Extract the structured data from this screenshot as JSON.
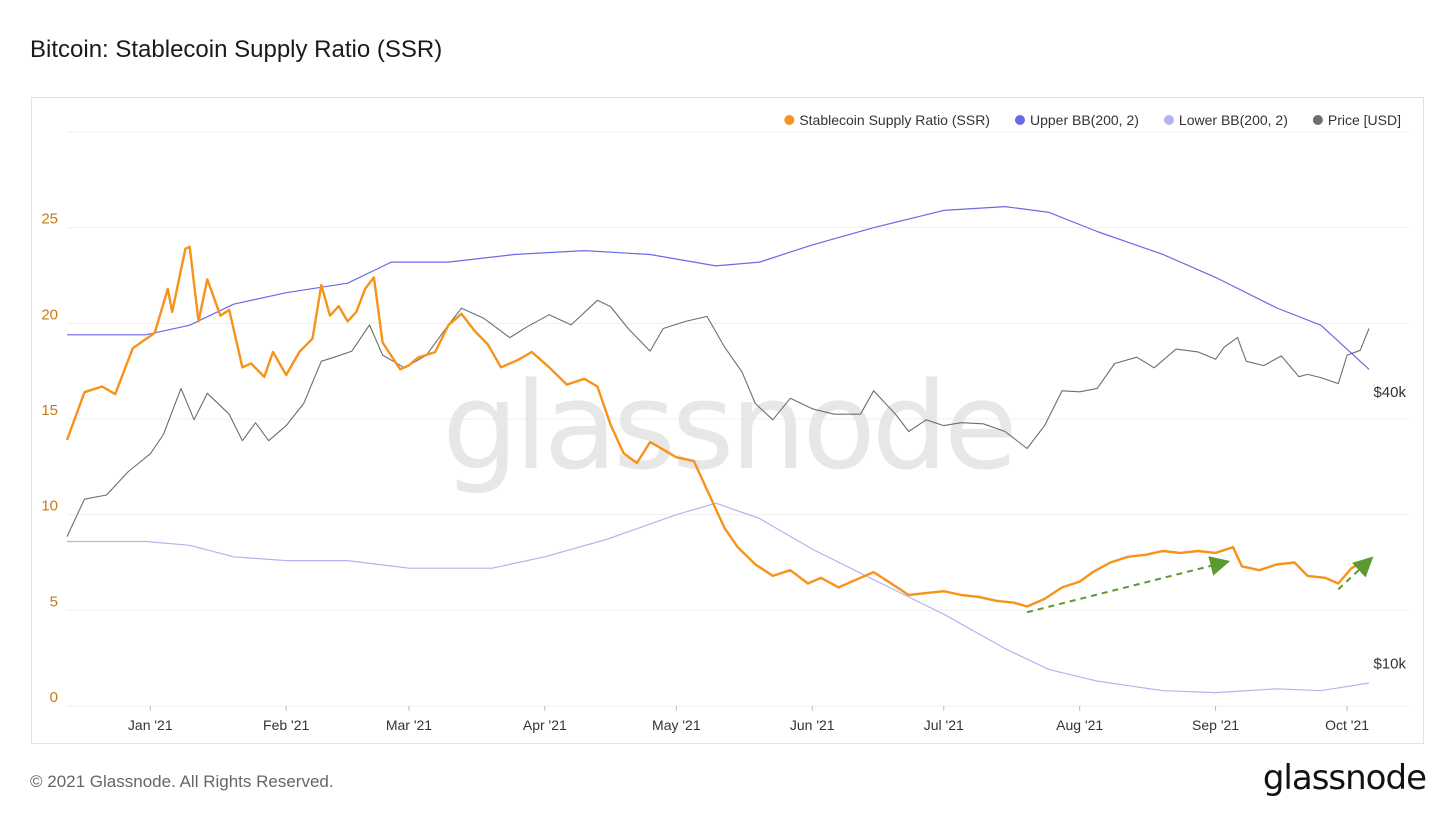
{
  "title": "Bitcoin: Stablecoin Supply Ratio (SSR)",
  "footer": {
    "copyright": "© 2021 Glassnode. All Rights Reserved.",
    "logo_text": "glassnode"
  },
  "watermark": "glassnode",
  "colors": {
    "ssr": "#f7931a",
    "upper_bb": "#6a6ae6",
    "lower_bb": "#b4b4f0",
    "price": "#6e6e6e",
    "annotation": "#5a9a2e",
    "grid": "#efefef",
    "left_axis": "#c77a12"
  },
  "chart_data": {
    "type": "line",
    "x_range": [
      "2020-12-13",
      "2021-10-06"
    ],
    "x_ticks": [
      {
        "date": "2021-01-01",
        "label": "Jan '21"
      },
      {
        "date": "2021-02-01",
        "label": "Feb '21"
      },
      {
        "date": "2021-03-01",
        "label": "Mar '21"
      },
      {
        "date": "2021-04-01",
        "label": "Apr '21"
      },
      {
        "date": "2021-05-01",
        "label": "May '21"
      },
      {
        "date": "2021-06-01",
        "label": "Jun '21"
      },
      {
        "date": "2021-07-01",
        "label": "Jul '21"
      },
      {
        "date": "2021-08-01",
        "label": "Aug '21"
      },
      {
        "date": "2021-09-01",
        "label": "Sep '21"
      },
      {
        "date": "2021-10-01",
        "label": "Oct '21"
      }
    ],
    "y_left": {
      "range": [
        0,
        30
      ],
      "ticks": [
        0,
        5,
        10,
        15,
        20,
        25
      ]
    },
    "y_right": {
      "scale": "log",
      "range": [
        8000,
        150000
      ],
      "ticks": [
        {
          "value": 10000,
          "label": "$10k"
        },
        {
          "value": 40000,
          "label": "$40k"
        }
      ]
    },
    "legend_placement": "top-right",
    "grid": true,
    "series": [
      {
        "name": "Stablecoin Supply Ratio (SSR)",
        "axis": "left",
        "points": [
          [
            "2020-12-13",
            13.9
          ],
          [
            "2020-12-17",
            16.4
          ],
          [
            "2020-12-21",
            16.7
          ],
          [
            "2020-12-24",
            16.3
          ],
          [
            "2020-12-28",
            18.7
          ],
          [
            "2021-01-02",
            19.5
          ],
          [
            "2021-01-05",
            21.8
          ],
          [
            "2021-01-06",
            20.6
          ],
          [
            "2021-01-09",
            23.9
          ],
          [
            "2021-01-10",
            24.0
          ],
          [
            "2021-01-12",
            20.1
          ],
          [
            "2021-01-14",
            22.3
          ],
          [
            "2021-01-17",
            20.4
          ],
          [
            "2021-01-19",
            20.7
          ],
          [
            "2021-01-22",
            17.7
          ],
          [
            "2021-01-24",
            17.9
          ],
          [
            "2021-01-27",
            17.2
          ],
          [
            "2021-01-29",
            18.5
          ],
          [
            "2021-02-01",
            17.3
          ],
          [
            "2021-02-04",
            18.5
          ],
          [
            "2021-02-07",
            19.2
          ],
          [
            "2021-02-09",
            22.0
          ],
          [
            "2021-02-11",
            20.4
          ],
          [
            "2021-02-13",
            20.9
          ],
          [
            "2021-02-15",
            20.1
          ],
          [
            "2021-02-17",
            20.6
          ],
          [
            "2021-02-19",
            21.8
          ],
          [
            "2021-02-21",
            22.4
          ],
          [
            "2021-02-23",
            19.0
          ],
          [
            "2021-02-27",
            17.6
          ],
          [
            "2021-03-01",
            17.8
          ],
          [
            "2021-03-03",
            18.2
          ],
          [
            "2021-03-07",
            18.5
          ],
          [
            "2021-03-10",
            19.9
          ],
          [
            "2021-03-13",
            20.5
          ],
          [
            "2021-03-16",
            19.6
          ],
          [
            "2021-03-19",
            18.9
          ],
          [
            "2021-03-22",
            17.7
          ],
          [
            "2021-03-26",
            18.1
          ],
          [
            "2021-03-29",
            18.5
          ],
          [
            "2021-04-02",
            17.7
          ],
          [
            "2021-04-06",
            16.8
          ],
          [
            "2021-04-10",
            17.1
          ],
          [
            "2021-04-13",
            16.7
          ],
          [
            "2021-04-16",
            14.7
          ],
          [
            "2021-04-19",
            13.2
          ],
          [
            "2021-04-22",
            12.7
          ],
          [
            "2021-04-25",
            13.8
          ],
          [
            "2021-04-28",
            13.4
          ],
          [
            "2021-05-01",
            13.0
          ],
          [
            "2021-05-05",
            12.8
          ],
          [
            "2021-05-09",
            10.8
          ],
          [
            "2021-05-12",
            9.3
          ],
          [
            "2021-05-15",
            8.3
          ],
          [
            "2021-05-19",
            7.4
          ],
          [
            "2021-05-23",
            6.8
          ],
          [
            "2021-05-27",
            7.1
          ],
          [
            "2021-05-31",
            6.4
          ],
          [
            "2021-06-03",
            6.7
          ],
          [
            "2021-06-07",
            6.2
          ],
          [
            "2021-06-11",
            6.6
          ],
          [
            "2021-06-15",
            7.0
          ],
          [
            "2021-06-19",
            6.4
          ],
          [
            "2021-06-23",
            5.8
          ],
          [
            "2021-06-27",
            5.9
          ],
          [
            "2021-07-01",
            6.0
          ],
          [
            "2021-07-05",
            5.8
          ],
          [
            "2021-07-09",
            5.7
          ],
          [
            "2021-07-13",
            5.5
          ],
          [
            "2021-07-17",
            5.4
          ],
          [
            "2021-07-20",
            5.2
          ],
          [
            "2021-07-24",
            5.6
          ],
          [
            "2021-07-28",
            6.2
          ],
          [
            "2021-08-01",
            6.5
          ],
          [
            "2021-08-04",
            7.0
          ],
          [
            "2021-08-08",
            7.5
          ],
          [
            "2021-08-12",
            7.8
          ],
          [
            "2021-08-16",
            7.9
          ],
          [
            "2021-08-20",
            8.1
          ],
          [
            "2021-08-24",
            8.0
          ],
          [
            "2021-08-28",
            8.1
          ],
          [
            "2021-09-01",
            8.0
          ],
          [
            "2021-09-05",
            8.3
          ],
          [
            "2021-09-07",
            7.3
          ],
          [
            "2021-09-11",
            7.1
          ],
          [
            "2021-09-15",
            7.4
          ],
          [
            "2021-09-19",
            7.5
          ],
          [
            "2021-09-22",
            6.8
          ],
          [
            "2021-09-26",
            6.7
          ],
          [
            "2021-09-29",
            6.4
          ],
          [
            "2021-10-02",
            7.2
          ],
          [
            "2021-10-06",
            7.7
          ]
        ]
      },
      {
        "name": "Upper BB(200, 2)",
        "axis": "left",
        "points": [
          [
            "2020-12-13",
            19.4
          ],
          [
            "2020-12-31",
            19.4
          ],
          [
            "2021-01-10",
            19.9
          ],
          [
            "2021-01-20",
            21.0
          ],
          [
            "2021-02-01",
            21.6
          ],
          [
            "2021-02-15",
            22.1
          ],
          [
            "2021-02-25",
            23.2
          ],
          [
            "2021-03-10",
            23.2
          ],
          [
            "2021-03-25",
            23.6
          ],
          [
            "2021-04-10",
            23.8
          ],
          [
            "2021-04-25",
            23.6
          ],
          [
            "2021-05-10",
            23.0
          ],
          [
            "2021-05-20",
            23.2
          ],
          [
            "2021-06-01",
            24.1
          ],
          [
            "2021-06-15",
            25.0
          ],
          [
            "2021-07-01",
            25.9
          ],
          [
            "2021-07-15",
            26.1
          ],
          [
            "2021-07-25",
            25.8
          ],
          [
            "2021-08-05",
            24.8
          ],
          [
            "2021-08-20",
            23.6
          ],
          [
            "2021-09-01",
            22.4
          ],
          [
            "2021-09-15",
            20.8
          ],
          [
            "2021-09-25",
            19.9
          ],
          [
            "2021-10-06",
            17.6
          ]
        ]
      },
      {
        "name": "Lower BB(200, 2)",
        "axis": "left",
        "points": [
          [
            "2020-12-13",
            8.6
          ],
          [
            "2020-12-31",
            8.6
          ],
          [
            "2021-01-10",
            8.4
          ],
          [
            "2021-01-20",
            7.8
          ],
          [
            "2021-02-01",
            7.6
          ],
          [
            "2021-02-15",
            7.6
          ],
          [
            "2021-03-01",
            7.2
          ],
          [
            "2021-03-20",
            7.2
          ],
          [
            "2021-04-01",
            7.8
          ],
          [
            "2021-04-15",
            8.7
          ],
          [
            "2021-05-01",
            10.0
          ],
          [
            "2021-05-10",
            10.6
          ],
          [
            "2021-05-20",
            9.8
          ],
          [
            "2021-06-01",
            8.2
          ],
          [
            "2021-06-15",
            6.6
          ],
          [
            "2021-07-01",
            4.8
          ],
          [
            "2021-07-15",
            3.0
          ],
          [
            "2021-07-25",
            1.9
          ],
          [
            "2021-08-05",
            1.3
          ],
          [
            "2021-08-20",
            0.8
          ],
          [
            "2021-09-01",
            0.7
          ],
          [
            "2021-09-15",
            0.9
          ],
          [
            "2021-09-25",
            0.8
          ],
          [
            "2021-10-06",
            1.2
          ]
        ]
      },
      {
        "name": "Price [USD]",
        "axis": "right",
        "points": [
          [
            "2020-12-13",
            19000
          ],
          [
            "2020-12-17",
            23000
          ],
          [
            "2020-12-22",
            23500
          ],
          [
            "2020-12-27",
            26500
          ],
          [
            "2021-01-01",
            29000
          ],
          [
            "2021-01-04",
            32000
          ],
          [
            "2021-01-08",
            40500
          ],
          [
            "2021-01-11",
            34500
          ],
          [
            "2021-01-14",
            39500
          ],
          [
            "2021-01-19",
            35500
          ],
          [
            "2021-01-22",
            31000
          ],
          [
            "2021-01-25",
            34000
          ],
          [
            "2021-01-28",
            31000
          ],
          [
            "2021-02-01",
            33500
          ],
          [
            "2021-02-05",
            37500
          ],
          [
            "2021-02-09",
            46500
          ],
          [
            "2021-02-12",
            47500
          ],
          [
            "2021-02-16",
            49000
          ],
          [
            "2021-02-20",
            56000
          ],
          [
            "2021-02-23",
            48000
          ],
          [
            "2021-02-28",
            45000
          ],
          [
            "2021-03-05",
            48000
          ],
          [
            "2021-03-10",
            56000
          ],
          [
            "2021-03-13",
            61000
          ],
          [
            "2021-03-18",
            58000
          ],
          [
            "2021-03-24",
            52500
          ],
          [
            "2021-03-28",
            55500
          ],
          [
            "2021-04-02",
            59000
          ],
          [
            "2021-04-07",
            56000
          ],
          [
            "2021-04-13",
            63500
          ],
          [
            "2021-04-16",
            61500
          ],
          [
            "2021-04-20",
            55000
          ],
          [
            "2021-04-25",
            49000
          ],
          [
            "2021-04-28",
            55000
          ],
          [
            "2021-05-03",
            57000
          ],
          [
            "2021-05-08",
            58500
          ],
          [
            "2021-05-12",
            50000
          ],
          [
            "2021-05-16",
            44000
          ],
          [
            "2021-05-19",
            37500
          ],
          [
            "2021-05-23",
            34500
          ],
          [
            "2021-05-27",
            38500
          ],
          [
            "2021-06-01",
            36500
          ],
          [
            "2021-06-06",
            35500
          ],
          [
            "2021-06-12",
            35500
          ],
          [
            "2021-06-15",
            40000
          ],
          [
            "2021-06-20",
            35500
          ],
          [
            "2021-06-23",
            32500
          ],
          [
            "2021-06-27",
            34500
          ],
          [
            "2021-07-01",
            33500
          ],
          [
            "2021-07-05",
            34000
          ],
          [
            "2021-07-10",
            33800
          ],
          [
            "2021-07-15",
            32500
          ],
          [
            "2021-07-20",
            29800
          ],
          [
            "2021-07-24",
            33500
          ],
          [
            "2021-07-28",
            40000
          ],
          [
            "2021-08-01",
            39800
          ],
          [
            "2021-08-05",
            40500
          ],
          [
            "2021-08-09",
            46000
          ],
          [
            "2021-08-14",
            47500
          ],
          [
            "2021-08-18",
            45000
          ],
          [
            "2021-08-23",
            49500
          ],
          [
            "2021-08-28",
            48800
          ],
          [
            "2021-09-01",
            47000
          ],
          [
            "2021-09-03",
            50000
          ],
          [
            "2021-09-06",
            52500
          ],
          [
            "2021-09-08",
            46500
          ],
          [
            "2021-09-12",
            45500
          ],
          [
            "2021-09-16",
            47800
          ],
          [
            "2021-09-20",
            43000
          ],
          [
            "2021-09-22",
            43500
          ],
          [
            "2021-09-25",
            42800
          ],
          [
            "2021-09-29",
            41500
          ],
          [
            "2021-10-01",
            48000
          ],
          [
            "2021-10-04",
            49200
          ],
          [
            "2021-10-06",
            55000
          ]
        ]
      }
    ],
    "annotations": [
      {
        "type": "arrow",
        "from": [
          "2021-07-20",
          4.9
        ],
        "to": [
          "2021-09-03",
          7.5
        ]
      },
      {
        "type": "arrow",
        "from": [
          "2021-09-29",
          6.1
        ],
        "to": [
          "2021-10-06",
          7.6
        ]
      }
    ]
  }
}
